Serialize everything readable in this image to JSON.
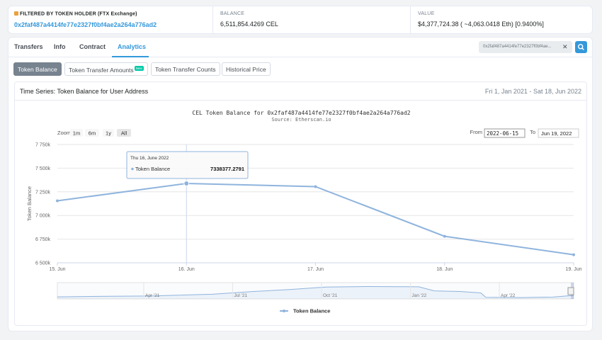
{
  "holder": {
    "label": "FILTERED BY TOKEN HOLDER (FTX Exchange)",
    "address": "0x2faf487a4414fe77e2327f0bf4ae2a264a776ad2"
  },
  "balance": {
    "label": "BALANCE",
    "value": "6,511,854.4269 CEL"
  },
  "value": {
    "label": "VALUE",
    "value": "$4,377,724.38 ( ~4,063.0418 Eth) [0.9400%]"
  },
  "tabs": [
    {
      "label": "Transfers"
    },
    {
      "label": "Info"
    },
    {
      "label": "Contract"
    },
    {
      "label": "Analytics"
    }
  ],
  "search": {
    "value": "0x2faf487a4414fe77e2327f0bf4ae..."
  },
  "subtabs": [
    {
      "label": "Token Balance"
    },
    {
      "label": "Token Transfer Amounts",
      "badge": "New"
    },
    {
      "label": "Token Transfer Counts"
    },
    {
      "label": "Historical Price"
    }
  ],
  "panel": {
    "title": "Time Series: Token Balance for User Address",
    "date_range": "Fri 1, Jan 2021 - Sat 18, Jun 2022"
  },
  "zoom": {
    "label": "Zoom",
    "buttons": [
      "1m",
      "6m",
      "1y",
      "All"
    ]
  },
  "range_selector": {
    "from_label": "From",
    "from_value": "2022-06-15",
    "to_label": "To",
    "to_value": "Jun 19, 2022"
  },
  "tooltip": {
    "date": "Thu 16, June 2022",
    "series": "Token Balance",
    "value": "7338377.2791"
  },
  "colors": {
    "accent": "#3498db",
    "series": "#8fb4dd"
  },
  "chart_data": {
    "type": "line",
    "title": "CEL Token Balance for 0x2faf487a4414fe77e2327f0bf4ae2a264a776ad2",
    "subtitle": "Source: Etherscan.io",
    "ylabel": "Token Balance",
    "xlabel": "",
    "x": [
      "2022-06-15",
      "2022-06-16",
      "2022-06-17",
      "2022-06-18",
      "2022-06-19"
    ],
    "xticks": [
      "15. Jun",
      "16. Jun",
      "17. Jun",
      "18. Jun",
      "19. Jun"
    ],
    "yticks": [
      "6 500k",
      "6 750k",
      "7 000k",
      "7 250k",
      "7 500k",
      "7 750k"
    ],
    "ylim": [
      6500000,
      7750000
    ],
    "series": [
      {
        "name": "Token Balance",
        "values": [
          7155000,
          7338377.2791,
          7305000,
          6780000,
          6585000
        ]
      }
    ],
    "navigator_labels": [
      "Apr '21",
      "Jul '21",
      "Oct '21",
      "Jan '22",
      "Apr '22"
    ],
    "legend": "bottom-center",
    "grid": true
  }
}
